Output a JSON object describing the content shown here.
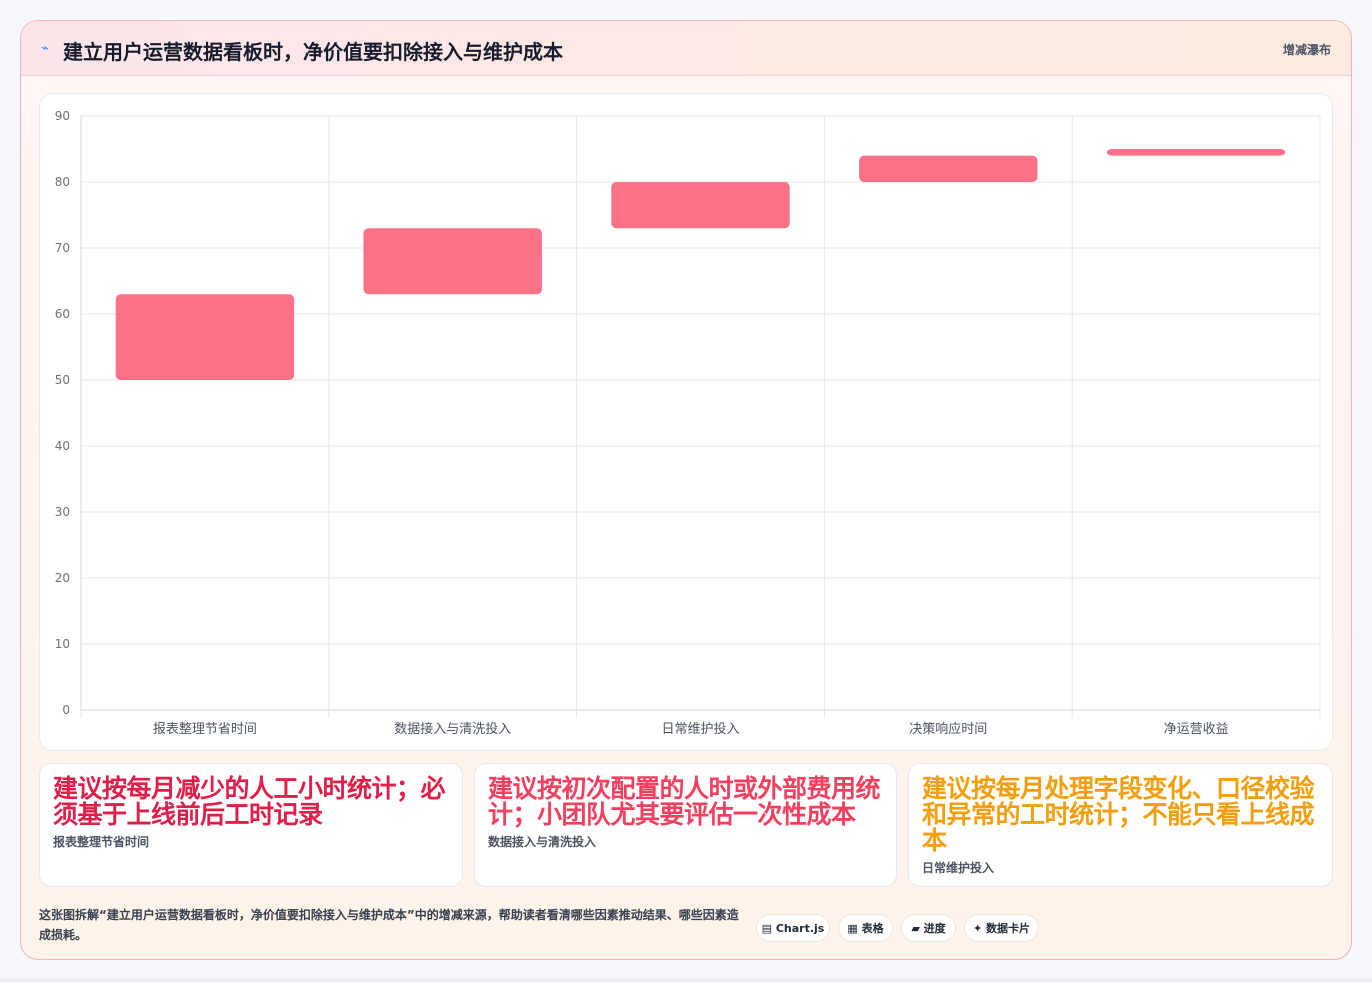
{
  "header": {
    "title": "建立用户运营数据看板时，净价值要扣除接入与维护成本",
    "tag": "增减瀑布"
  },
  "chart_data": {
    "type": "bar",
    "subtype": "waterfall",
    "categories": [
      "报表整理节省时间",
      "数据接入与清洗投入",
      "日常维护投入",
      "决策响应时间",
      "净运营收益"
    ],
    "ranges": [
      [
        50,
        63
      ],
      [
        63,
        73
      ],
      [
        73,
        80
      ],
      [
        80,
        84
      ],
      [
        84,
        85
      ]
    ],
    "ylim": [
      0,
      90
    ],
    "yticks": [
      0,
      10,
      20,
      30,
      40,
      50,
      60,
      70,
      80,
      90
    ],
    "grid": true,
    "bar_color": "#fb7185"
  },
  "notes": [
    {
      "big": "建议按每月减少的人工小时统计；必须基于上线前后工时记录",
      "small": "报表整理节省时间",
      "color": "#e11d48"
    },
    {
      "big": "建议按初次配置的人时或外部费用统计；小团队尤其要评估一次性成本",
      "small": "数据接入与清洗投入",
      "color": "#f43f5e"
    },
    {
      "big": "建议按每月处理字段变化、口径校验和异常的工时统计；不能只看上线成本",
      "small": "日常维护投入",
      "color": "#f59e0b"
    }
  ],
  "footer": {
    "description": "这张图拆解“建立用户运营数据看板时，净价值要扣除接入与维护成本”中的增减来源，帮助读者看清哪些因素推动结果、哪些因素造成损耗。",
    "chips": [
      "▤ Chart.js",
      "▦ 表格",
      "▰ 进度",
      "✦ 数据卡片"
    ]
  }
}
